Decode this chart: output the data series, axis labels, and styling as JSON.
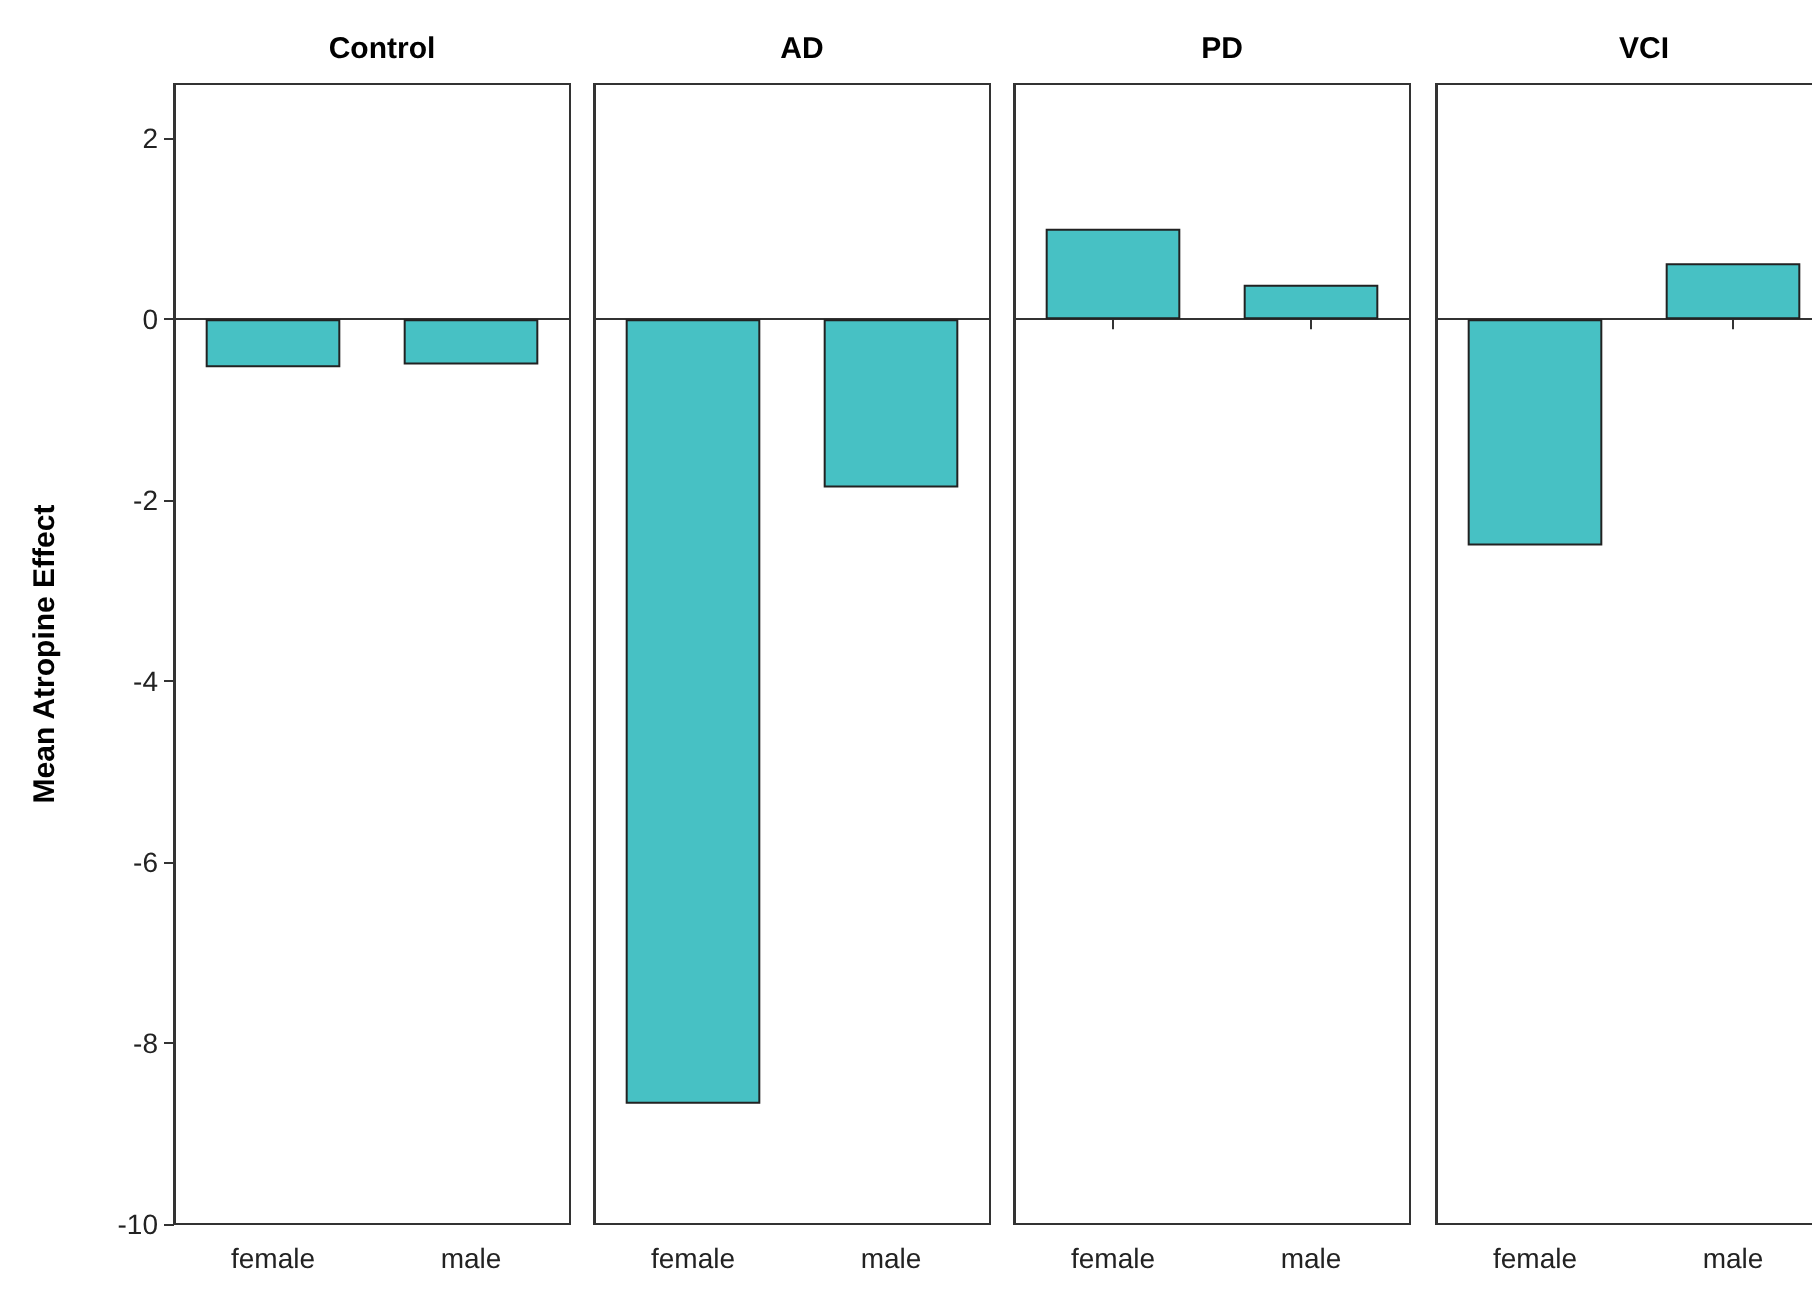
{
  "chart_data": [
    {
      "type": "bar",
      "title": "Control",
      "ylabel": "Mean Atropine Effect",
      "categories": [
        "female",
        "male"
      ],
      "values": [
        -0.53,
        -0.5
      ],
      "color": "#47c1c4",
      "ylim": [
        -10,
        2.6
      ],
      "yticks": [
        -10,
        -8,
        -6,
        -4,
        -2,
        0,
        2
      ]
    },
    {
      "type": "bar",
      "title": "AD",
      "categories": [
        "female",
        "male"
      ],
      "values": [
        -8.67,
        -1.86
      ],
      "color": "#47c1c4",
      "ylim": [
        -10,
        2.6
      ],
      "yticks": [
        -10,
        -8,
        -6,
        -4,
        -2,
        0,
        2
      ],
      "tick_labels": "x"
    },
    {
      "type": "bar",
      "title": "PD",
      "categories": [
        "female",
        "male"
      ],
      "values": [
        1.0,
        0.38
      ],
      "color": "#47c1c4",
      "ylim": [
        -10,
        2.6
      ],
      "yticks": [
        -10,
        -8,
        -6,
        -4,
        -2,
        0,
        2
      ],
      "tick_labels": "x"
    },
    {
      "type": "bar",
      "title": "VCI",
      "categories": [
        "female",
        "male"
      ],
      "values": [
        -2.5,
        0.62
      ],
      "color": "#47c1c4",
      "ylim": [
        -10,
        2.6
      ],
      "yticks": [
        -10,
        -8,
        -6,
        -4,
        -2,
        0,
        2
      ],
      "tick_labels": "x"
    }
  ]
}
